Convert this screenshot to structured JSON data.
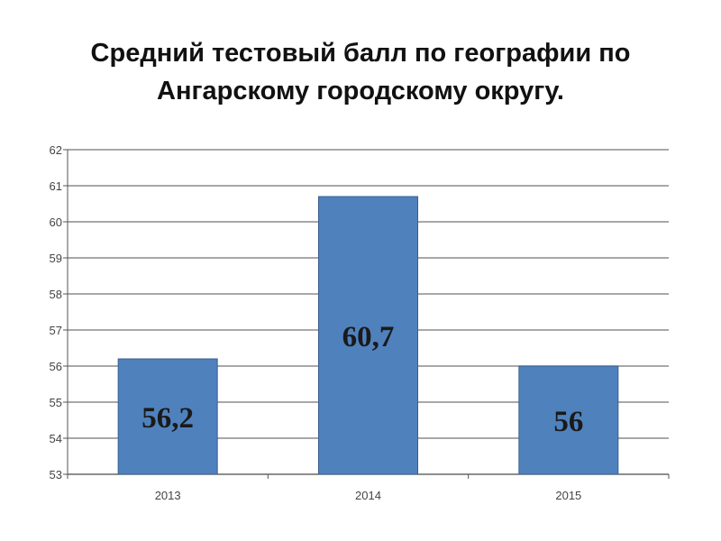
{
  "title_lines": [
    "Средний тестовый балл по географии по",
    "Ангарскому городскому округу."
  ],
  "colors": {
    "bar": "#4f81bd",
    "bar_edge": "#3a5f8f",
    "grid": "#8c8c8c",
    "axis": "#555555"
  },
  "chart_data": {
    "type": "bar",
    "categories": [
      "2013",
      "2014",
      "2015"
    ],
    "values": [
      56.2,
      60.7,
      56
    ],
    "data_labels": [
      "56,2",
      "60,7",
      "56"
    ],
    "y_ticks": [
      "53",
      "54",
      "55",
      "56",
      "57",
      "58",
      "59",
      "60",
      "61",
      "62"
    ],
    "ylim": [
      53,
      62
    ],
    "grid": true,
    "legend": "none"
  }
}
